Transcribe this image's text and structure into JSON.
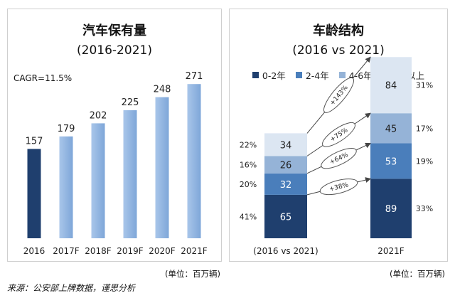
{
  "panels": {
    "left": {
      "title": "汽车保有量",
      "subtitle": "(2016-2021)",
      "note": "CAGR=11.5%"
    },
    "right": {
      "title": "车龄结构",
      "subtitle": "(2016 vs 2021)"
    }
  },
  "unit_left": "(单位：百万辆)",
  "unit_right": "(单位：百万辆)",
  "source": "来源：公安部上牌数据，谨思分析",
  "colors": {
    "dark": "#1f3f6e",
    "light": "#8db4e2",
    "seg": [
      "#1f3f6e",
      "#4a7ebb",
      "#95b3d7",
      "#dce6f2"
    ]
  },
  "chart_data": [
    {
      "type": "bar",
      "title": "汽车保有量",
      "subtitle": "(2016-2021)",
      "categories": [
        "2016",
        "2017F",
        "2018F",
        "2019F",
        "2020F",
        "2021F"
      ],
      "values": [
        157,
        179,
        202,
        225,
        248,
        271
      ],
      "ylim": [
        0,
        300
      ],
      "annotation": "CAGR=11.5%"
    },
    {
      "type": "bar",
      "stacked": true,
      "title": "车龄结构",
      "subtitle": "(2016 vs 2021)",
      "categories": [
        "(2016 vs 2021)",
        "2021F"
      ],
      "series": [
        {
          "name": "0-2年",
          "values": [
            65,
            89
          ],
          "percent": [
            "41%",
            "33%"
          ]
        },
        {
          "name": "2-4年",
          "values": [
            32,
            53
          ],
          "percent": [
            "20%",
            "19%"
          ]
        },
        {
          "name": "4-6年",
          "values": [
            26,
            45
          ],
          "percent": [
            "16%",
            "17%"
          ]
        },
        {
          "name": "6年以上",
          "values": [
            34,
            84
          ],
          "percent": [
            "22%",
            "31%"
          ]
        }
      ],
      "growth": [
        "+38%",
        "+64%",
        "+75%",
        "+143%"
      ],
      "ylim": [
        0,
        280
      ]
    }
  ]
}
